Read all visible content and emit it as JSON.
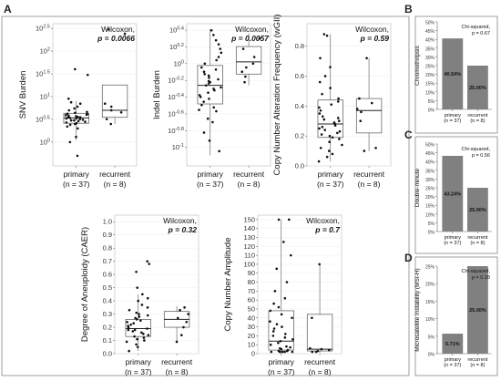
{
  "panels": {
    "A": "A",
    "B": "B",
    "C": "C",
    "D": "D"
  },
  "colors": {
    "bar": "#808080",
    "box_stroke": "#555555",
    "point": "#111111",
    "frame": "#888888"
  },
  "chart_data": [
    {
      "id": "snv",
      "type": "box",
      "ylabel": "SNV Burden",
      "scale": "log10",
      "ylim": [
        0.3,
        400
      ],
      "yticks": [
        1,
        10,
        100
      ],
      "ytick_labels": [
        "10^0",
        "10^0.5",
        "10^1",
        "10^1.5",
        "10^2",
        "10^2.5"
      ],
      "ytick_values": [
        1,
        3.16,
        10,
        31.6,
        100,
        316
      ],
      "categories": [
        "primary",
        "recurrent"
      ],
      "ns": [
        "(n = 37)",
        "(n = 8)"
      ],
      "stat_test": "Wilcoxon,",
      "stat_p": "p = 0.0066",
      "boxes": [
        {
          "q1": 2.6,
          "median": 3.4,
          "q3": 4.3,
          "low": 1.1,
          "high": 8
        },
        {
          "q1": 3.5,
          "median": 5.0,
          "q3": 18,
          "low": 2.5,
          "high": 18
        }
      ],
      "points": [
        [
          1.3,
          2.0,
          2.2,
          2.4,
          2.5,
          2.6,
          2.7,
          2.8,
          2.9,
          3.0,
          3.0,
          3.1,
          3.2,
          3.3,
          3.3,
          3.4,
          3.5,
          3.5,
          3.6,
          3.7,
          3.8,
          3.9,
          4.0,
          4.1,
          4.2,
          4.4,
          4.6,
          5.0,
          5.5,
          6.0,
          7.0,
          7.5,
          9,
          30,
          40,
          1.0,
          0.5
        ],
        [
          2.5,
          3.2,
          4.5,
          5.0,
          6.0,
          7.0,
          240,
          300
        ]
      ]
    },
    {
      "id": "indel",
      "type": "box",
      "ylabel": "Indel Burden",
      "scale": "log10",
      "ylim": [
        0.06,
        3
      ],
      "ytick_labels": [
        "10^0.4",
        "10^0.2",
        "10^0",
        "10^-0.2",
        "10^-0.4",
        "10^-0.6",
        "10^-0.8",
        "10^-1"
      ],
      "ytick_values": [
        2.512,
        1.585,
        1.0,
        0.631,
        0.398,
        0.251,
        0.158,
        0.1
      ],
      "categories": [
        "primary",
        "recurrent"
      ],
      "ns": [
        "(n = 37)",
        "(n = 8)"
      ],
      "stat_test": "Wilcoxon,",
      "stat_p": "p = 0.0057",
      "boxes": [
        {
          "q1": 0.33,
          "median": 0.55,
          "q3": 0.95,
          "low": 0.08,
          "high": 2.6
        },
        {
          "q1": 0.75,
          "median": 1.05,
          "q3": 1.6,
          "low": 0.55,
          "high": 2.3
        }
      ],
      "points": [
        [
          0.09,
          0.12,
          0.15,
          0.2,
          0.22,
          0.27,
          0.3,
          0.32,
          0.35,
          0.38,
          0.4,
          0.42,
          0.45,
          0.48,
          0.5,
          0.52,
          0.55,
          0.58,
          0.6,
          0.62,
          0.65,
          0.68,
          0.72,
          0.75,
          0.8,
          0.85,
          0.9,
          1.0,
          1.1,
          1.2,
          1.35,
          1.5,
          1.7,
          1.9,
          2.2,
          2.5,
          0.28
        ],
        [
          0.6,
          0.7,
          0.8,
          0.9,
          1.0,
          1.2,
          1.5,
          2.0
        ]
      ]
    },
    {
      "id": "cna",
      "type": "box",
      "ylabel": "Copy Number Alteration Frequency (wGII)",
      "scale": "linear",
      "ylim": [
        0,
        0.95
      ],
      "ytick_labels": [
        "0.0",
        "0.2",
        "0.4",
        "0.6",
        "0.8"
      ],
      "ytick_values": [
        0.0,
        0.2,
        0.4,
        0.6,
        0.8
      ],
      "categories": [
        "primary",
        "recurrent"
      ],
      "ns": [
        "(n = 37)",
        "(n = 8)"
      ],
      "stat_test": "Wilcoxon,",
      "stat_p": "p = 0.59",
      "boxes": [
        {
          "q1": 0.19,
          "median": 0.28,
          "q3": 0.44,
          "low": 0.03,
          "high": 0.88
        },
        {
          "q1": 0.22,
          "median": 0.37,
          "q3": 0.45,
          "low": 0.1,
          "high": 0.72
        }
      ],
      "points": [
        [
          0.03,
          0.06,
          0.08,
          0.1,
          0.12,
          0.14,
          0.16,
          0.18,
          0.19,
          0.2,
          0.21,
          0.22,
          0.23,
          0.24,
          0.25,
          0.26,
          0.27,
          0.28,
          0.29,
          0.3,
          0.31,
          0.32,
          0.33,
          0.35,
          0.37,
          0.39,
          0.41,
          0.43,
          0.45,
          0.48,
          0.52,
          0.56,
          0.6,
          0.66,
          0.72,
          0.87,
          0.88
        ],
        [
          0.1,
          0.12,
          0.3,
          0.36,
          0.38,
          0.42,
          0.45,
          0.72
        ]
      ]
    },
    {
      "id": "caer",
      "type": "box",
      "ylabel": "Degree of Aneuploidy (CAER)",
      "scale": "linear",
      "ylim": [
        0,
        1.05
      ],
      "ytick_labels": [
        "0.0",
        "0.1",
        "0.2",
        "0.3",
        "0.4",
        "0.5",
        "0.6",
        "0.7",
        "0.8",
        "0.9",
        "1.0"
      ],
      "ytick_values": [
        0.0,
        0.1,
        0.2,
        0.3,
        0.4,
        0.5,
        0.6,
        0.7,
        0.8,
        0.9,
        1.0
      ],
      "categories": [
        "primary",
        "recurrent"
      ],
      "ns": [
        "(n = 37)",
        "(n = 8)"
      ],
      "stat_test": "Wilcoxon,",
      "stat_p": "p = 0.32",
      "boxes": [
        {
          "q1": 0.13,
          "median": 0.19,
          "q3": 0.26,
          "low": 0.02,
          "high": 0.45
        },
        {
          "q1": 0.2,
          "median": 0.26,
          "q3": 0.32,
          "low": 0.09,
          "high": 0.36
        }
      ],
      "points": [
        [
          0.02,
          0.05,
          0.07,
          0.09,
          0.1,
          0.11,
          0.12,
          0.13,
          0.14,
          0.15,
          0.16,
          0.17,
          0.18,
          0.18,
          0.19,
          0.2,
          0.21,
          0.22,
          0.23,
          0.24,
          0.25,
          0.26,
          0.27,
          0.28,
          0.29,
          0.3,
          0.31,
          0.33,
          0.35,
          0.37,
          0.4,
          0.42,
          0.45,
          0.5,
          0.68,
          0.7,
          0.62
        ],
        [
          0.09,
          0.14,
          0.2,
          0.24,
          0.27,
          0.3,
          0.33,
          0.35
        ]
      ]
    },
    {
      "id": "cnamp",
      "type": "box",
      "ylabel": "Copy Number Amplitude",
      "scale": "linear",
      "ylim": [
        0,
        155
      ],
      "ytick_labels": [
        "0",
        "10",
        "20",
        "30",
        "40",
        "50",
        "60",
        "70",
        "80",
        "90",
        "100",
        "110",
        "120",
        "130",
        "140",
        "150"
      ],
      "ytick_values": [
        0,
        10,
        20,
        30,
        40,
        50,
        60,
        70,
        80,
        90,
        100,
        110,
        120,
        130,
        140,
        150
      ],
      "categories": [
        "primary",
        "recurrent"
      ],
      "ns": [
        "(n = 37)",
        "(n = 8)"
      ],
      "stat_test": "Wilcoxon,",
      "stat_p": "p = 0.7",
      "boxes": [
        {
          "q1": 4,
          "median": 14,
          "q3": 48,
          "low": 0,
          "high": 150
        },
        {
          "q1": 3,
          "median": 5,
          "q3": 44,
          "low": 1,
          "high": 100
        }
      ],
      "points": [
        [
          0,
          1,
          1,
          2,
          2,
          3,
          3,
          4,
          5,
          6,
          7,
          8,
          10,
          12,
          14,
          16,
          18,
          20,
          22,
          25,
          28,
          30,
          33,
          36,
          40,
          44,
          48,
          52,
          56,
          62,
          70,
          80,
          95,
          110,
          125,
          150,
          150
        ],
        [
          1,
          2,
          3,
          4,
          5,
          6,
          40,
          100
        ]
      ]
    },
    {
      "id": "chromothripsis",
      "type": "bar",
      "ylabel": "Chromothripsis",
      "ylim": [
        0,
        50
      ],
      "ytick_labels": [
        "0%",
        "5%",
        "10%",
        "15%",
        "20%",
        "25%",
        "30%",
        "35%",
        "40%",
        "45%",
        "50%"
      ],
      "ytick_values": [
        0,
        5,
        10,
        15,
        20,
        25,
        30,
        35,
        40,
        45,
        50
      ],
      "categories": [
        "primary",
        "recurrent"
      ],
      "ns": [
        "(n = 37)",
        "(n = 8)"
      ],
      "values": [
        40.54,
        25.0
      ],
      "value_labels": [
        "40.54%",
        "25.00%"
      ],
      "stat_test": "Chi-squared,",
      "stat_p": "p = 0.67"
    },
    {
      "id": "doubleminute",
      "type": "bar",
      "ylabel": "Double-minute",
      "ylim": [
        0,
        50
      ],
      "ytick_labels": [
        "0%",
        "5%",
        "10%",
        "15%",
        "20%",
        "25%",
        "30%",
        "35%",
        "40%",
        "45%",
        "50%"
      ],
      "ytick_values": [
        0,
        5,
        10,
        15,
        20,
        25,
        30,
        35,
        40,
        45,
        50
      ],
      "categories": [
        "primary",
        "recurrent"
      ],
      "ns": [
        "(n = 37)",
        "(n = 8)"
      ],
      "values": [
        43.24,
        25.0
      ],
      "value_labels": [
        "43.24%",
        "25.00%"
      ],
      "stat_test": "Chi-squared,",
      "stat_p": "p = 0.56"
    },
    {
      "id": "msi",
      "type": "bar",
      "ylabel": "Microsatellite Instability (MSI-H)",
      "ylim": [
        0,
        25
      ],
      "ytick_labels": [
        "0%",
        "5%",
        "10%",
        "15%",
        "20%",
        "25%"
      ],
      "ytick_values": [
        0,
        5,
        10,
        15,
        20,
        25
      ],
      "categories": [
        "primary",
        "recurrent"
      ],
      "ns": [
        "(n = 37)",
        "(n = 8)"
      ],
      "values": [
        5.71,
        25.0
      ],
      "value_labels": [
        "5.71%",
        "25.00%"
      ],
      "stat_test": "Chi-squared,",
      "stat_p": "p = 0.28"
    }
  ]
}
